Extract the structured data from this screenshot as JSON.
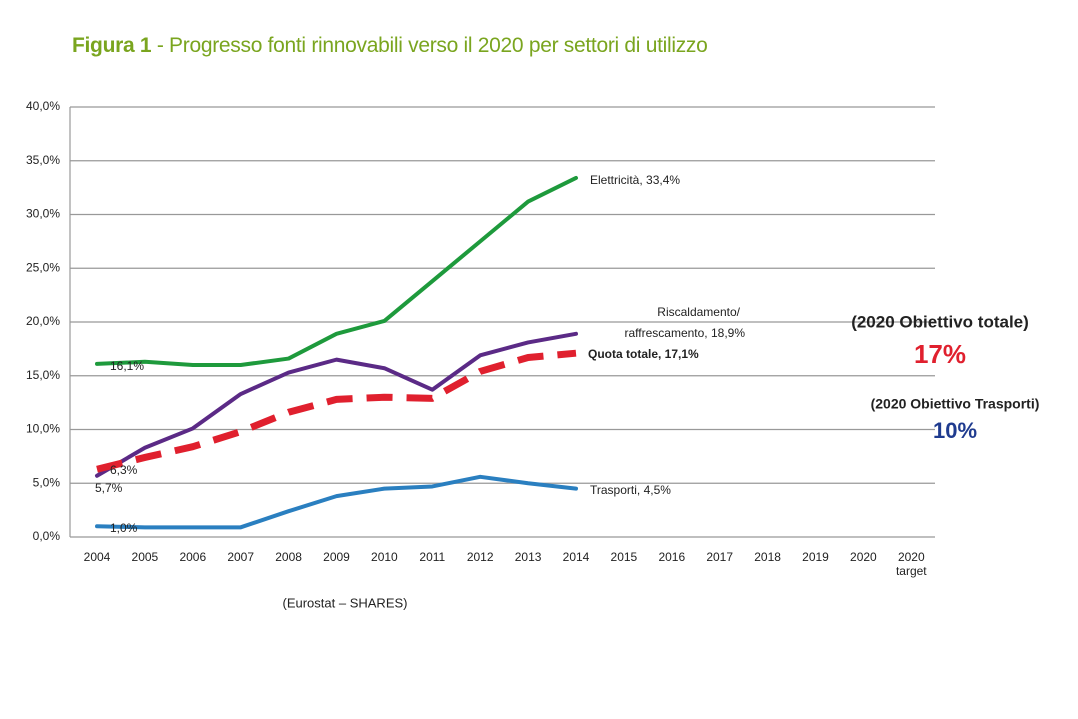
{
  "chart_data": {
    "type": "line",
    "title_prefix": "Figura 1",
    "title": " - Progresso fonti rinnovabili verso il 2020 per settori di utilizzo",
    "categories": [
      "2004",
      "2005",
      "2006",
      "2007",
      "2008",
      "2009",
      "2010",
      "2011",
      "2012",
      "2013",
      "2014",
      "2015",
      "2016",
      "2017",
      "2018",
      "2019",
      "2020",
      "2020 target"
    ],
    "ylim": [
      0,
      40
    ],
    "yticks": [
      {
        "value": 0,
        "label": "0,0%"
      },
      {
        "value": 5,
        "label": "5,0%"
      },
      {
        "value": 10,
        "label": "10,0%"
      },
      {
        "value": 15,
        "label": "15,0%"
      },
      {
        "value": 20,
        "label": "20,0%"
      },
      {
        "value": 25,
        "label": "25,0%"
      },
      {
        "value": 30,
        "label": "30,0%"
      },
      {
        "value": 35,
        "label": "35,0%"
      },
      {
        "value": 40,
        "label": "40,0%"
      }
    ],
    "grid": true,
    "series": [
      {
        "name": "Elettricità",
        "color": "#1e9a3c",
        "values": [
          16.1,
          16.3,
          16.0,
          16.0,
          16.6,
          18.9,
          20.1,
          23.8,
          27.5,
          31.2,
          33.4,
          null,
          null,
          null,
          null,
          null,
          null,
          null
        ]
      },
      {
        "name": "Riscaldamento/raffrescamento",
        "color": "#5b2a86",
        "values": [
          5.7,
          8.3,
          10.1,
          13.3,
          15.3,
          16.5,
          15.7,
          13.7,
          16.9,
          18.1,
          18.9,
          null,
          null,
          null,
          null,
          null,
          null,
          null
        ]
      },
      {
        "name": "Quota totale",
        "color": "#e0202e",
        "dashed": true,
        "values": [
          6.3,
          7.4,
          8.4,
          9.8,
          11.6,
          12.8,
          13.0,
          12.9,
          15.4,
          16.7,
          17.1,
          null,
          null,
          null,
          null,
          null,
          null,
          null
        ]
      },
      {
        "name": "Trasporti",
        "color": "#2a7fc0",
        "values": [
          1.0,
          0.9,
          0.9,
          0.9,
          2.4,
          3.8,
          4.5,
          4.7,
          5.6,
          5.0,
          4.5,
          null,
          null,
          null,
          null,
          null,
          null,
          null
        ]
      }
    ],
    "annotations": [
      "16,1%",
      "6,3%",
      "5,7%",
      "1,0%",
      "Elettricità, 33,4%",
      "Riscaldamento/",
      "raffrescamento, 18,9%",
      "Quota totale, 17,1%",
      "Trasporti, 4,5%",
      "(2020 Obiettivo totale)",
      "17%",
      "(2020 Obiettivo Trasporti)",
      "10%"
    ],
    "source": "(Eurostat – SHARES)"
  }
}
